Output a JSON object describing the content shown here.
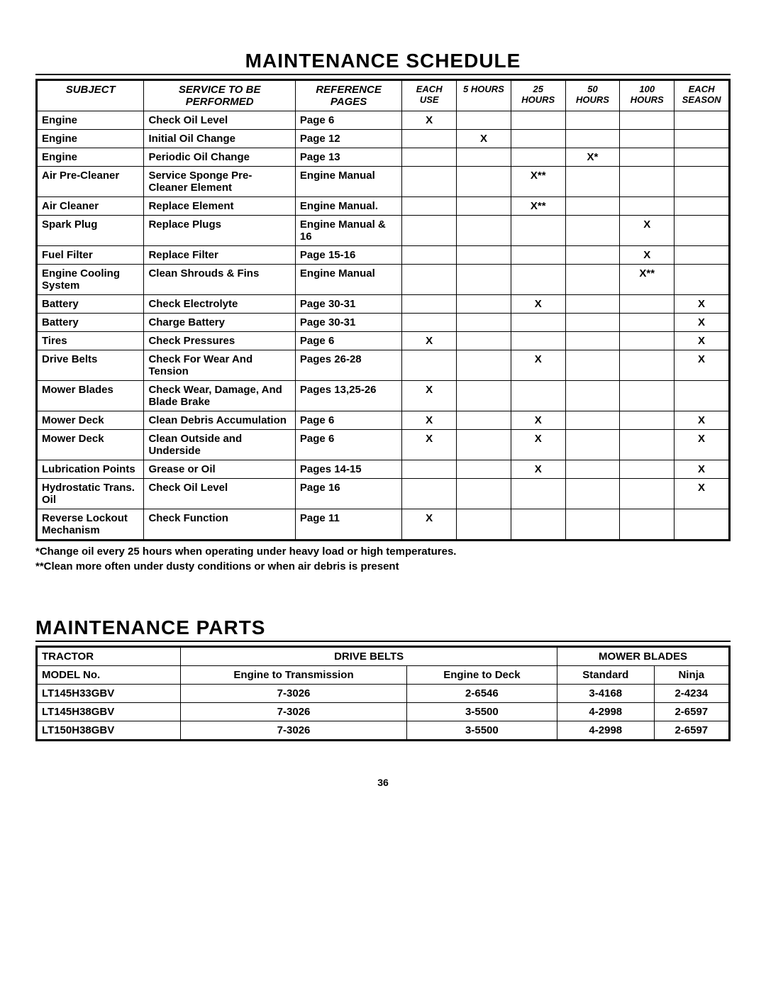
{
  "title_schedule": "MAINTENANCE SCHEDULE",
  "title_parts": "MAINTENANCE PARTS",
  "page_number": "36",
  "schedule": {
    "headers": {
      "subject": "SUBJECT",
      "service": "SERVICE\nTO BE PERFORMED",
      "reference": "REFERENCE\nPAGES",
      "each_use": "EACH\nUSE",
      "h5": "5\nHOURS",
      "h25": "25\nHOURS",
      "h50": "50\nHOURS",
      "h100": "100\nHOURS",
      "each_season": "EACH\nSEASON"
    },
    "rows": [
      {
        "subject": "Engine",
        "service": "Check Oil Level",
        "ref": "Page 6",
        "each_use": "X",
        "h5": "",
        "h25": "",
        "h50": "",
        "h100": "",
        "season": ""
      },
      {
        "subject": "Engine",
        "service": "Initial Oil Change",
        "ref": "Page 12",
        "each_use": "",
        "h5": "X",
        "h25": "",
        "h50": "",
        "h100": "",
        "season": ""
      },
      {
        "subject": "Engine",
        "service": "Periodic Oil Change",
        "ref": "Page 13",
        "each_use": "",
        "h5": "",
        "h25": "",
        "h50": "X*",
        "h100": "",
        "season": ""
      },
      {
        "subject": "Air Pre-Cleaner",
        "service": "Service Sponge Pre-Cleaner Element",
        "ref": "Engine Manual",
        "each_use": "",
        "h5": "",
        "h25": "X**",
        "h50": "",
        "h100": "",
        "season": ""
      },
      {
        "subject": "Air Cleaner",
        "service": "Replace Element",
        "ref": "Engine Manual.",
        "each_use": "",
        "h5": "",
        "h25": "X**",
        "h50": "",
        "h100": "",
        "season": ""
      },
      {
        "subject": "Spark Plug",
        "service": "Replace Plugs",
        "ref": "Engine Manual & 16",
        "each_use": "",
        "h5": "",
        "h25": "",
        "h50": "",
        "h100": "X",
        "season": ""
      },
      {
        "subject": "Fuel Filter",
        "service": "Replace Filter",
        "ref": "Page 15-16",
        "each_use": "",
        "h5": "",
        "h25": "",
        "h50": "",
        "h100": "X",
        "season": ""
      },
      {
        "subject": "Engine Cooling System",
        "service": "Clean Shrouds & Fins",
        "ref": "Engine Manual",
        "each_use": "",
        "h5": "",
        "h25": "",
        "h50": "",
        "h100": "X**",
        "season": ""
      },
      {
        "subject": "Battery",
        "service": "Check Electrolyte",
        "ref": "Page 30-31",
        "each_use": "",
        "h5": "",
        "h25": "X",
        "h50": "",
        "h100": "",
        "season": "X"
      },
      {
        "subject": "Battery",
        "service": "Charge Battery",
        "ref": "Page 30-31",
        "each_use": "",
        "h5": "",
        "h25": "",
        "h50": "",
        "h100": "",
        "season": "X"
      },
      {
        "subject": "Tires",
        "service": "Check Pressures",
        "ref": "Page 6",
        "each_use": "X",
        "h5": "",
        "h25": "",
        "h50": "",
        "h100": "",
        "season": "X"
      },
      {
        "subject": "Drive Belts",
        "service": "Check For Wear And Tension",
        "ref": "Pages 26-28",
        "each_use": "",
        "h5": "",
        "h25": "X",
        "h50": "",
        "h100": "",
        "season": "X"
      },
      {
        "subject": "Mower Blades",
        "service": "Check Wear, Damage, And Blade Brake",
        "ref": "Pages 13,25-26",
        "each_use": "X",
        "h5": "",
        "h25": "",
        "h50": "",
        "h100": "",
        "season": ""
      },
      {
        "subject": "Mower Deck",
        "service": "Clean Debris Accumulation",
        "ref": "Page 6",
        "each_use": "X",
        "h5": "",
        "h25": "X",
        "h50": "",
        "h100": "",
        "season": "X"
      },
      {
        "subject": "Mower Deck",
        "service": "Clean Outside and Underside",
        "ref": "Page 6",
        "each_use": "X",
        "h5": "",
        "h25": "X",
        "h50": "",
        "h100": "",
        "season": "X"
      },
      {
        "subject": "Lubrication Points",
        "service": "Grease or Oil",
        "ref": "Pages 14-15",
        "each_use": "",
        "h5": "",
        "h25": "X",
        "h50": "",
        "h100": "",
        "season": "X"
      },
      {
        "subject": "Hydrostatic Trans. Oil",
        "service": "Check Oil Level",
        "ref": "Page 16",
        "each_use": "",
        "h5": "",
        "h25": "",
        "h50": "",
        "h100": "",
        "season": "X"
      },
      {
        "subject": "Reverse Lockout Mechanism",
        "service": "Check Function",
        "ref": "Page 11",
        "each_use": "X",
        "h5": "",
        "h25": "",
        "h50": "",
        "h100": "",
        "season": ""
      }
    ]
  },
  "notes": {
    "line1": "*Change oil every 25 hours when operating under heavy load or high temperatures.",
    "line2": "**Clean more often under dusty conditions or when air debris is present"
  },
  "parts": {
    "headers": {
      "tractor": "TRACTOR",
      "drive_belts": "DRIVE BELTS",
      "mower_blades": "MOWER BLADES",
      "model_no": "MODEL No.",
      "eng_trans": "Engine to Transmission",
      "eng_deck": "Engine to Deck",
      "standard": "Standard",
      "ninja": "Ninja"
    },
    "rows": [
      {
        "model": "LT145H33GBV",
        "eng_trans": "7-3026",
        "eng_deck": "2-6546",
        "standard": "3-4168",
        "ninja": "2-4234"
      },
      {
        "model": "LT145H38GBV",
        "eng_trans": "7-3026",
        "eng_deck": "3-5500",
        "standard": "4-2998",
        "ninja": "2-6597"
      },
      {
        "model": "LT150H38GBV",
        "eng_trans": "7-3026",
        "eng_deck": "3-5500",
        "standard": "4-2998",
        "ninja": "2-6597"
      }
    ]
  }
}
